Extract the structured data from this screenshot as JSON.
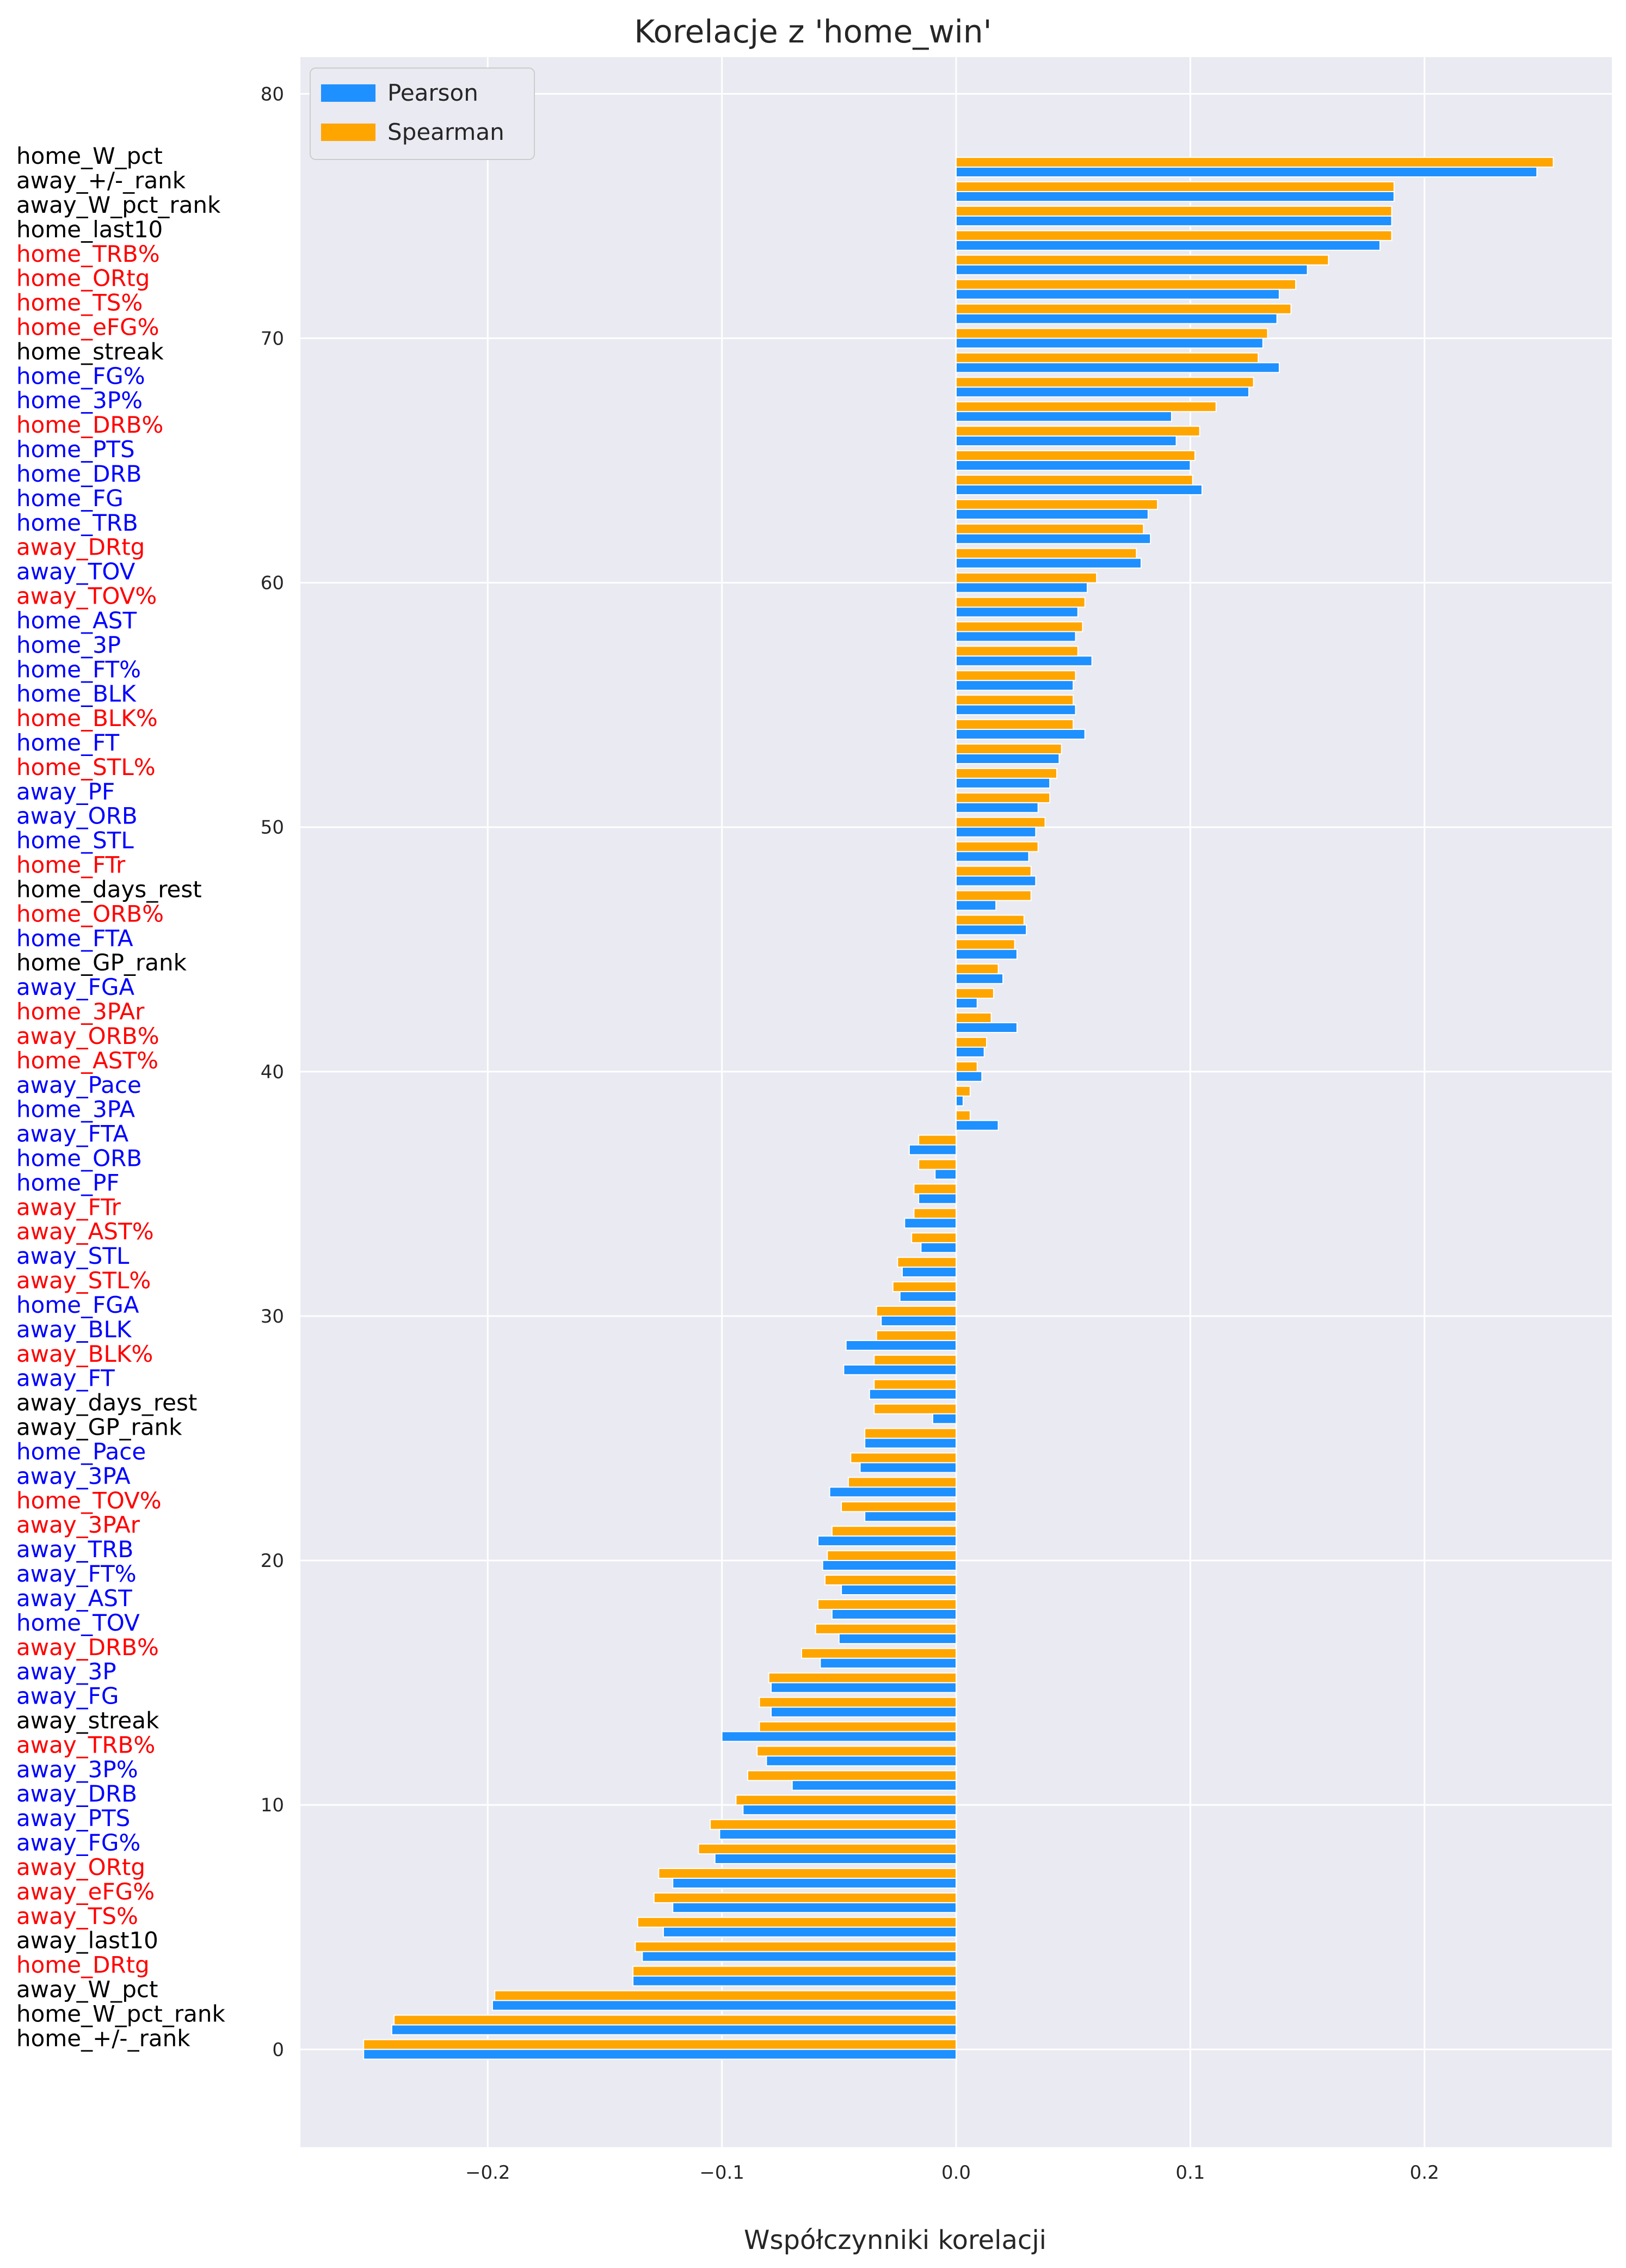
{
  "chart_data": {
    "type": "bar",
    "orientation": "horizontal",
    "title": "Korelacje z 'home_win'",
    "xlabel": "Współczynniki korelacji",
    "ylabel": "",
    "xlim": [
      -0.28,
      0.28
    ],
    "ylim": [
      -4,
      81.5
    ],
    "x_ticks": [
      -0.2,
      -0.1,
      0.0,
      0.1,
      0.2
    ],
    "x_tick_labels": [
      "−0.2",
      "−0.1",
      "0.0",
      "0.1",
      "0.2"
    ],
    "y_ticks": [
      0,
      10,
      20,
      30,
      40,
      50,
      60,
      70,
      80
    ],
    "grid": true,
    "legend_position": "top-left",
    "colors": {
      "pearson": "#1E90FF",
      "spearman": "#FFA500",
      "background": "#EAEAF2",
      "grid": "#FFFFFF"
    },
    "label_colors": {
      "black": "#000000",
      "red": "#FF0000",
      "blue": "#0000FF"
    },
    "series": [
      {
        "name": "Pearson",
        "color": "#1E90FF"
      },
      {
        "name": "Spearman",
        "color": "#FFA500"
      }
    ],
    "features": [
      {
        "name": "home_W_pct",
        "color": "black",
        "pearson": 0.248,
        "spearman": 0.255
      },
      {
        "name": "away_+/-_rank",
        "color": "black",
        "pearson": 0.187,
        "spearman": 0.187
      },
      {
        "name": "away_W_pct_rank",
        "color": "black",
        "pearson": 0.186,
        "spearman": 0.186
      },
      {
        "name": "home_last10",
        "color": "black",
        "pearson": 0.181,
        "spearman": 0.186
      },
      {
        "name": "home_TRB%",
        "color": "red",
        "pearson": 0.15,
        "spearman": 0.159
      },
      {
        "name": "home_ORtg",
        "color": "red",
        "pearson": 0.138,
        "spearman": 0.145
      },
      {
        "name": "home_TS%",
        "color": "red",
        "pearson": 0.137,
        "spearman": 0.143
      },
      {
        "name": "home_eFG%",
        "color": "red",
        "pearson": 0.131,
        "spearman": 0.133
      },
      {
        "name": "home_streak",
        "color": "black",
        "pearson": 0.138,
        "spearman": 0.129
      },
      {
        "name": "home_FG%",
        "color": "blue",
        "pearson": 0.125,
        "spearman": 0.127
      },
      {
        "name": "home_3P%",
        "color": "blue",
        "pearson": 0.092,
        "spearman": 0.111
      },
      {
        "name": "home_DRB%",
        "color": "red",
        "pearson": 0.094,
        "spearman": 0.104
      },
      {
        "name": "home_PTS",
        "color": "blue",
        "pearson": 0.1,
        "spearman": 0.102
      },
      {
        "name": "home_DRB",
        "color": "blue",
        "pearson": 0.105,
        "spearman": 0.101
      },
      {
        "name": "home_FG",
        "color": "blue",
        "pearson": 0.082,
        "spearman": 0.086
      },
      {
        "name": "home_TRB",
        "color": "blue",
        "pearson": 0.083,
        "spearman": 0.08
      },
      {
        "name": "away_DRtg",
        "color": "red",
        "pearson": 0.079,
        "spearman": 0.077
      },
      {
        "name": "away_TOV",
        "color": "blue",
        "pearson": 0.056,
        "spearman": 0.06
      },
      {
        "name": "away_TOV%",
        "color": "red",
        "pearson": 0.052,
        "spearman": 0.055
      },
      {
        "name": "home_AST",
        "color": "blue",
        "pearson": 0.051,
        "spearman": 0.054
      },
      {
        "name": "home_3P",
        "color": "blue",
        "pearson": 0.058,
        "spearman": 0.052
      },
      {
        "name": "home_FT%",
        "color": "blue",
        "pearson": 0.05,
        "spearman": 0.051
      },
      {
        "name": "home_BLK",
        "color": "blue",
        "pearson": 0.051,
        "spearman": 0.05
      },
      {
        "name": "home_BLK%",
        "color": "red",
        "pearson": 0.055,
        "spearman": 0.05
      },
      {
        "name": "home_FT",
        "color": "blue",
        "pearson": 0.044,
        "spearman": 0.045
      },
      {
        "name": "home_STL%",
        "color": "red",
        "pearson": 0.04,
        "spearman": 0.043
      },
      {
        "name": "away_PF",
        "color": "blue",
        "pearson": 0.035,
        "spearman": 0.04
      },
      {
        "name": "away_ORB",
        "color": "blue",
        "pearson": 0.034,
        "spearman": 0.038
      },
      {
        "name": "home_STL",
        "color": "blue",
        "pearson": 0.031,
        "spearman": 0.035
      },
      {
        "name": "home_FTr",
        "color": "red",
        "pearson": 0.034,
        "spearman": 0.032
      },
      {
        "name": "home_days_rest",
        "color": "black",
        "pearson": 0.017,
        "spearman": 0.032
      },
      {
        "name": "home_ORB%",
        "color": "red",
        "pearson": 0.03,
        "spearman": 0.029
      },
      {
        "name": "home_FTA",
        "color": "blue",
        "pearson": 0.026,
        "spearman": 0.025
      },
      {
        "name": "home_GP_rank",
        "color": "black",
        "pearson": 0.02,
        "spearman": 0.018
      },
      {
        "name": "away_FGA",
        "color": "blue",
        "pearson": 0.009,
        "spearman": 0.016
      },
      {
        "name": "home_3PAr",
        "color": "red",
        "pearson": 0.026,
        "spearman": 0.015
      },
      {
        "name": "away_ORB%",
        "color": "red",
        "pearson": 0.012,
        "spearman": 0.013
      },
      {
        "name": "home_AST%",
        "color": "red",
        "pearson": 0.011,
        "spearman": 0.009
      },
      {
        "name": "away_Pace",
        "color": "blue",
        "pearson": 0.003,
        "spearman": 0.006
      },
      {
        "name": "home_3PA",
        "color": "blue",
        "pearson": 0.018,
        "spearman": 0.006
      },
      {
        "name": "away_FTA",
        "color": "blue",
        "pearson": -0.02,
        "spearman": -0.016
      },
      {
        "name": "home_ORB",
        "color": "blue",
        "pearson": -0.009,
        "spearman": -0.016
      },
      {
        "name": "home_PF",
        "color": "blue",
        "pearson": -0.016,
        "spearman": -0.018
      },
      {
        "name": "away_FTr",
        "color": "red",
        "pearson": -0.022,
        "spearman": -0.018
      },
      {
        "name": "away_AST%",
        "color": "red",
        "pearson": -0.015,
        "spearman": -0.019
      },
      {
        "name": "away_STL",
        "color": "blue",
        "pearson": -0.023,
        "spearman": -0.025
      },
      {
        "name": "away_STL%",
        "color": "red",
        "pearson": -0.024,
        "spearman": -0.027
      },
      {
        "name": "home_FGA",
        "color": "blue",
        "pearson": -0.032,
        "spearman": -0.034
      },
      {
        "name": "away_BLK",
        "color": "blue",
        "pearson": -0.047,
        "spearman": -0.034
      },
      {
        "name": "away_BLK%",
        "color": "red",
        "pearson": -0.048,
        "spearman": -0.035
      },
      {
        "name": "away_FT",
        "color": "blue",
        "pearson": -0.037,
        "spearman": -0.035
      },
      {
        "name": "away_days_rest",
        "color": "black",
        "pearson": -0.01,
        "spearman": -0.035
      },
      {
        "name": "away_GP_rank",
        "color": "black",
        "pearson": -0.039,
        "spearman": -0.039
      },
      {
        "name": "home_Pace",
        "color": "blue",
        "pearson": -0.041,
        "spearman": -0.045
      },
      {
        "name": "away_3PA",
        "color": "blue",
        "pearson": -0.054,
        "spearman": -0.046
      },
      {
        "name": "home_TOV%",
        "color": "red",
        "pearson": -0.039,
        "spearman": -0.049
      },
      {
        "name": "away_3PAr",
        "color": "red",
        "pearson": -0.059,
        "spearman": -0.053
      },
      {
        "name": "away_TRB",
        "color": "blue",
        "pearson": -0.057,
        "spearman": -0.055
      },
      {
        "name": "away_FT%",
        "color": "blue",
        "pearson": -0.049,
        "spearman": -0.056
      },
      {
        "name": "away_AST",
        "color": "blue",
        "pearson": -0.053,
        "spearman": -0.059
      },
      {
        "name": "home_TOV",
        "color": "blue",
        "pearson": -0.05,
        "spearman": -0.06
      },
      {
        "name": "away_DRB%",
        "color": "red",
        "pearson": -0.058,
        "spearman": -0.066
      },
      {
        "name": "away_3P",
        "color": "blue",
        "pearson": -0.079,
        "spearman": -0.08
      },
      {
        "name": "away_FG",
        "color": "blue",
        "pearson": -0.079,
        "spearman": -0.084
      },
      {
        "name": "away_streak",
        "color": "black",
        "pearson": -0.1,
        "spearman": -0.084
      },
      {
        "name": "away_TRB%",
        "color": "red",
        "pearson": -0.081,
        "spearman": -0.085
      },
      {
        "name": "away_3P%",
        "color": "blue",
        "pearson": -0.07,
        "spearman": -0.089
      },
      {
        "name": "away_DRB",
        "color": "blue",
        "pearson": -0.091,
        "spearman": -0.094
      },
      {
        "name": "away_PTS",
        "color": "blue",
        "pearson": -0.101,
        "spearman": -0.105
      },
      {
        "name": "away_FG%",
        "color": "blue",
        "pearson": -0.103,
        "spearman": -0.11
      },
      {
        "name": "away_ORtg",
        "color": "red",
        "pearson": -0.121,
        "spearman": -0.127
      },
      {
        "name": "away_eFG%",
        "color": "red",
        "pearson": -0.121,
        "spearman": -0.129
      },
      {
        "name": "away_TS%",
        "color": "red",
        "pearson": -0.125,
        "spearman": -0.136
      },
      {
        "name": "away_last10",
        "color": "black",
        "pearson": -0.134,
        "spearman": -0.137
      },
      {
        "name": "home_DRtg",
        "color": "red",
        "pearson": -0.138,
        "spearman": -0.138
      },
      {
        "name": "away_W_pct",
        "color": "black",
        "pearson": -0.198,
        "spearman": -0.197
      },
      {
        "name": "home_W_pct_rank",
        "color": "black",
        "pearson": -0.241,
        "spearman": -0.24
      },
      {
        "name": "home_+/-_rank",
        "color": "black",
        "pearson": -0.253,
        "spearman": -0.253
      }
    ]
  }
}
